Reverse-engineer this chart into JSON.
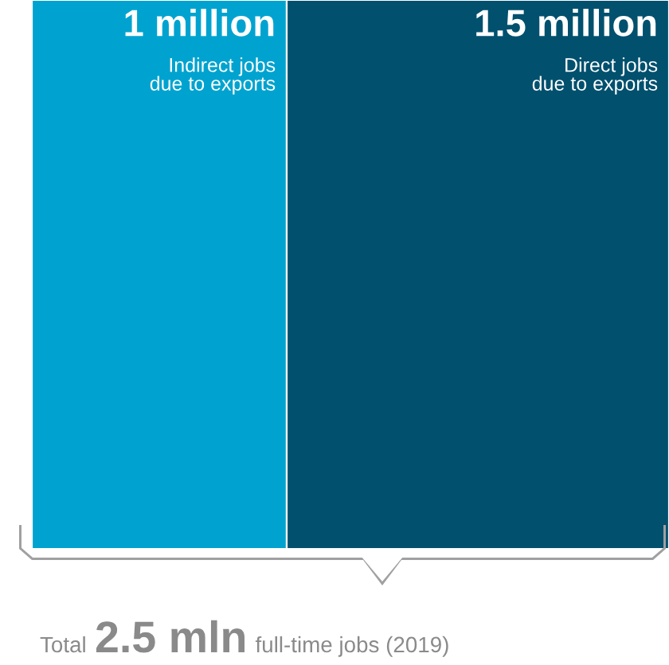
{
  "chart_data": {
    "type": "bar",
    "orientation": "horizontal",
    "stacked": true,
    "categories": [
      null
    ],
    "xlim": [
      0,
      2.5
    ],
    "tick_labels": false,
    "grid": false,
    "legend": false,
    "series": [
      {
        "name": "Indirect jobs\ndue to exports",
        "color": "#00a3cf",
        "values": [
          1
        ],
        "value_labels": [
          "1 million"
        ]
      },
      {
        "name": "Direct jobs\ndue to exports",
        "color": "#00506e",
        "values": [
          1.5
        ],
        "value_labels": [
          "1.5 million"
        ]
      }
    ],
    "annotations": [
      "Total",
      "2.5 mln",
      "full-time jobs (2019)"
    ]
  }
}
